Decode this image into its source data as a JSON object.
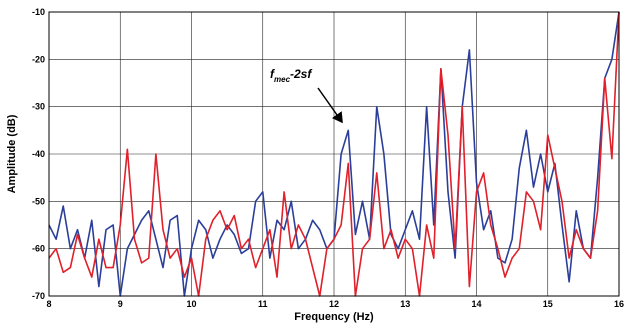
{
  "chart_data": {
    "type": "line",
    "xlabel": "Frequency (Hz)",
    "ylabel": "Amplitude (dB)",
    "x": [
      8,
      8.1,
      8.2,
      8.3,
      8.4,
      8.5,
      8.6,
      8.7,
      8.8,
      8.9,
      9,
      9.1,
      9.2,
      9.3,
      9.4,
      9.5,
      9.6,
      9.7,
      9.8,
      9.9,
      10,
      10.1,
      10.2,
      10.3,
      10.4,
      10.5,
      10.6,
      10.7,
      10.8,
      10.9,
      11,
      11.1,
      11.2,
      11.3,
      11.4,
      11.5,
      11.6,
      11.7,
      11.8,
      11.9,
      12,
      12.1,
      12.2,
      12.3,
      12.4,
      12.5,
      12.6,
      12.7,
      12.8,
      12.9,
      13,
      13.1,
      13.2,
      13.3,
      13.4,
      13.5,
      13.6,
      13.7,
      13.8,
      13.9,
      14,
      14.1,
      14.2,
      14.3,
      14.4,
      14.5,
      14.6,
      14.7,
      14.8,
      14.9,
      15,
      15.1,
      15.2,
      15.3,
      15.4,
      15.5,
      15.6,
      15.7,
      15.8,
      15.9,
      16
    ],
    "series": [
      {
        "color": "#2b3f9a",
        "values": [
          -55,
          -58,
          -51,
          -60,
          -56,
          -62,
          -54,
          -68,
          -56,
          -55,
          -70,
          -60,
          -57,
          -54,
          -52,
          -58,
          -64,
          -54,
          -53,
          -70,
          -60,
          -54,
          -56,
          -62,
          -58,
          -55,
          -57,
          -61,
          -60,
          -50,
          -48,
          -62,
          -54,
          -56,
          -50,
          -60,
          -58,
          -54,
          -56,
          -60,
          -58,
          -40,
          -35,
          -57,
          -50,
          -58,
          -30,
          -40,
          -57,
          -60,
          -56,
          -52,
          -58,
          -30,
          -55,
          -22,
          -48,
          -62,
          -30,
          -18,
          -46,
          -56,
          -52,
          -62,
          -63,
          -58,
          -43,
          -35,
          -47,
          -40,
          -48,
          -42,
          -55,
          -67,
          -52,
          -60,
          -62,
          -45,
          -24,
          -20,
          -10
        ]
      },
      {
        "color": "#e0202a",
        "values": [
          -62,
          -60,
          -65,
          -64,
          -57,
          -62,
          -66,
          -58,
          -64,
          -64,
          -55,
          -39,
          -58,
          -63,
          -62,
          -40,
          -56,
          -62,
          -60,
          -66,
          -62,
          -70,
          -58,
          -54,
          -52,
          -56,
          -53,
          -60,
          -58,
          -64,
          -60,
          -56,
          -66,
          -48,
          -60,
          -55,
          -58,
          -64,
          -70,
          -60,
          -58,
          -55,
          -42,
          -70,
          -60,
          -58,
          -44,
          -60,
          -56,
          -62,
          -58,
          -60,
          -70,
          -55,
          -62,
          -22,
          -36,
          -60,
          -30,
          -68,
          -48,
          -44,
          -55,
          -60,
          -66,
          -62,
          -60,
          -48,
          -50,
          -56,
          -36,
          -43,
          -50,
          -62,
          -56,
          -60,
          -62,
          -52,
          -24,
          -41,
          -10
        ]
      }
    ],
    "xlim": [
      8,
      16
    ],
    "xticks": [
      8,
      9,
      10,
      11,
      12,
      13,
      14,
      15,
      16
    ],
    "ylim": [
      -70,
      -10
    ],
    "yticks": [
      -70,
      -60,
      -50,
      -40,
      -30,
      -20,
      -10
    ],
    "grid": true,
    "annotation": {
      "base": "f",
      "subscript": "mec",
      "rest": "-2sf"
    }
  }
}
